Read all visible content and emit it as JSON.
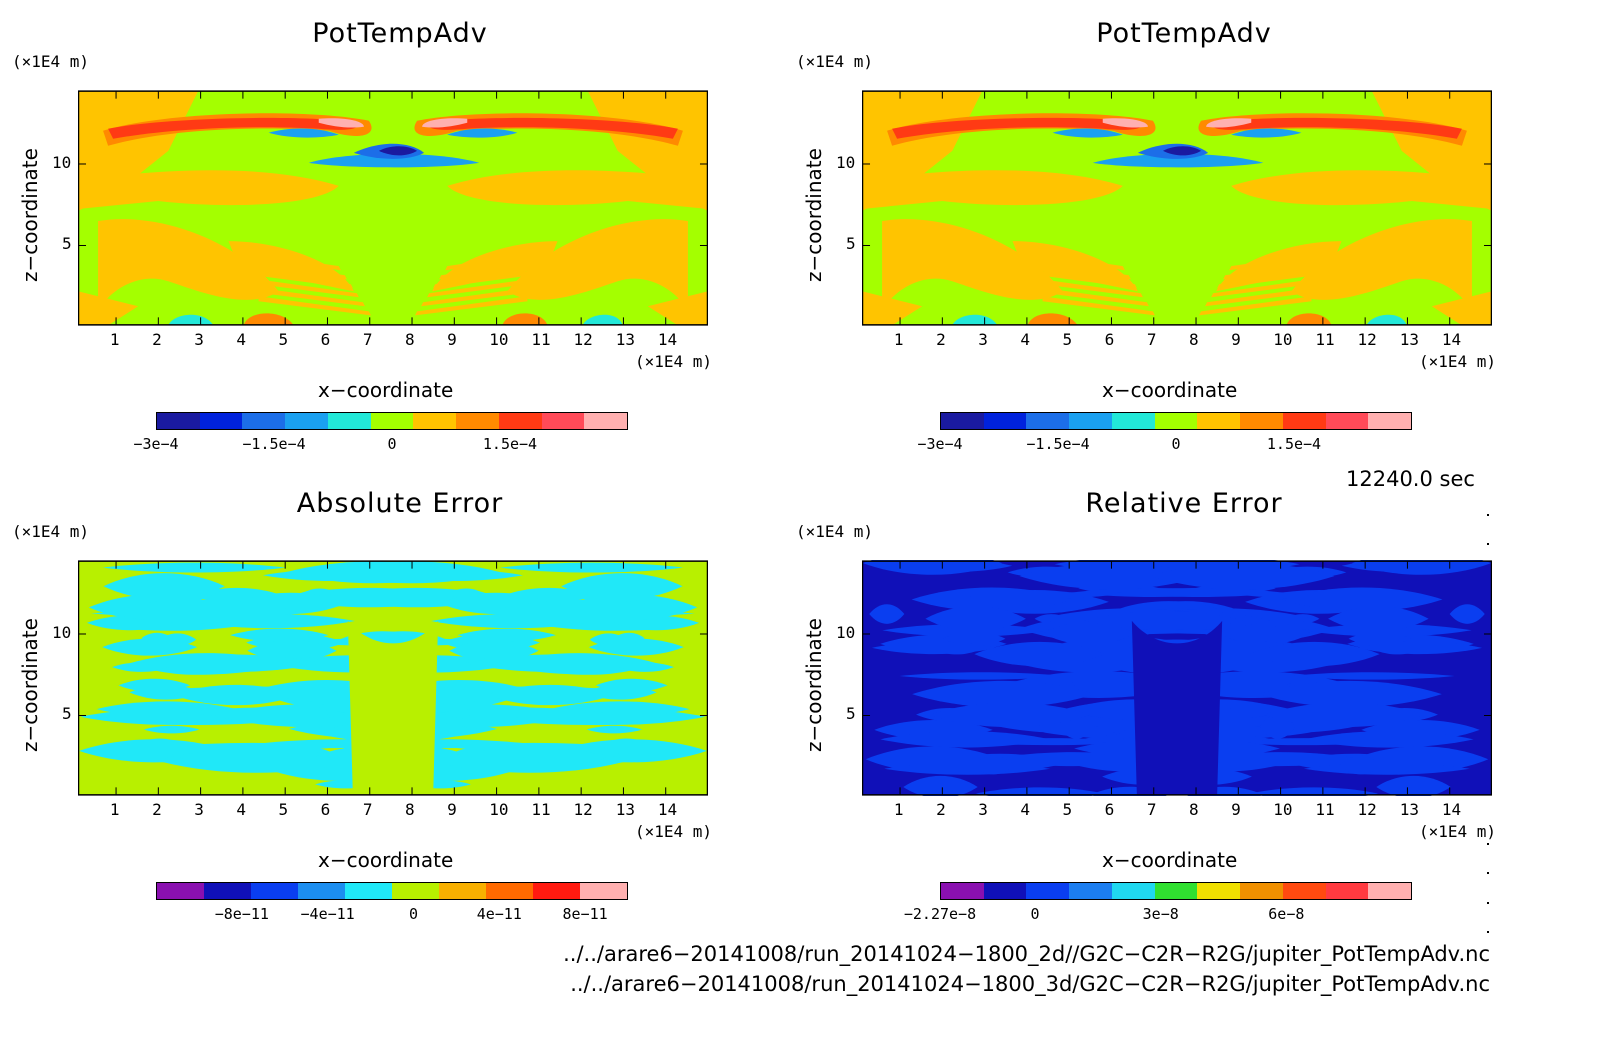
{
  "chart_data": [
    {
      "type": "heatmap",
      "title": "PotTempAdv",
      "xlabel": "x−coordinate",
      "ylabel": "z−coordinate",
      "x_unit": "(×1E4 m)",
      "y_unit": "(×1E4 m)",
      "x_ticks": [
        "1",
        "2",
        "3",
        "4",
        "5",
        "6",
        "7",
        "8",
        "9",
        "10",
        "11",
        "12",
        "13",
        "14"
      ],
      "y_ticks": [
        "5",
        "10"
      ],
      "xlim": [
        0.1,
        15.0
      ],
      "ylim": [
        0.1,
        14.5
      ],
      "colorbar": {
        "colors": [
          "#1a1aa0",
          "#0022dd",
          "#1c6ee8",
          "#1aa0f0",
          "#22e8d8",
          "#a4ff00",
          "#ffc400",
          "#ff8a00",
          "#ff3a14",
          "#ff4a58",
          "#ffb0b0"
        ],
        "tick_labels": [
          "−3e−4",
          "−1.5e−4",
          "0",
          "1.5e−4"
        ],
        "tick_values": [
          -0.0003,
          -0.00015,
          0,
          0.00015
        ],
        "range": [
          -0.0003,
          0.0003
        ]
      },
      "field": "potential temperature advection, 2d run"
    },
    {
      "type": "heatmap",
      "title": "PotTempAdv",
      "xlabel": "x−coordinate",
      "ylabel": "z−coordinate",
      "x_unit": "(×1E4 m)",
      "y_unit": "(×1E4 m)",
      "x_ticks": [
        "1",
        "2",
        "3",
        "4",
        "5",
        "6",
        "7",
        "8",
        "9",
        "10",
        "11",
        "12",
        "13",
        "14"
      ],
      "y_ticks": [
        "5",
        "10"
      ],
      "xlim": [
        0.1,
        15.0
      ],
      "ylim": [
        0.1,
        14.5
      ],
      "colorbar": {
        "colors": [
          "#1a1aa0",
          "#0022dd",
          "#1c6ee8",
          "#1aa0f0",
          "#22e8d8",
          "#a4ff00",
          "#ffc400",
          "#ff8a00",
          "#ff3a14",
          "#ff4a58",
          "#ffb0b0"
        ],
        "tick_labels": [
          "−3e−4",
          "−1.5e−4",
          "0",
          "1.5e−4"
        ],
        "tick_values": [
          -0.0003,
          -0.00015,
          0,
          0.00015
        ],
        "range": [
          -0.0003,
          0.0003
        ]
      },
      "field": "potential temperature advection, 3d run"
    },
    {
      "type": "heatmap",
      "title": "Absolute Error",
      "xlabel": "x−coordinate",
      "ylabel": "z−coordinate",
      "x_unit": "(×1E4 m)",
      "y_unit": "(×1E4 m)",
      "x_ticks": [
        "1",
        "2",
        "3",
        "4",
        "5",
        "6",
        "7",
        "8",
        "9",
        "10",
        "11",
        "12",
        "13",
        "14"
      ],
      "y_ticks": [
        "5",
        "10"
      ],
      "xlim": [
        0.1,
        15.0
      ],
      "ylim": [
        0.1,
        14.5
      ],
      "colorbar": {
        "colors": [
          "#8a10b0",
          "#1010b8",
          "#0a3ef0",
          "#1c8ef0",
          "#20e8f8",
          "#b8f000",
          "#f8b000",
          "#ff6a00",
          "#ff1a10",
          "#ffb0b0"
        ],
        "tick_labels": [
          "−8e−11",
          "−4e−11",
          "0",
          "4e−11",
          "8e−11"
        ],
        "tick_values": [
          -8e-11,
          -4e-11,
          0,
          4e-11,
          8e-11
        ],
        "range": [
          -1.2e-10,
          1e-10
        ]
      },
      "dominant_levels": [
        "−4e−11..0 (cyan)",
        "0..2e−11 (yellow-green)"
      ]
    },
    {
      "type": "heatmap",
      "title": "Relative Error",
      "xlabel": "x−coordinate",
      "ylabel": "z−coordinate",
      "x_unit": "(×1E4 m)",
      "y_unit": "(×1E4 m)",
      "x_ticks": [
        "1",
        "2",
        "3",
        "4",
        "5",
        "6",
        "7",
        "8",
        "9",
        "10",
        "11",
        "12",
        "13",
        "14"
      ],
      "y_ticks": [
        "5",
        "10"
      ],
      "xlim": [
        0.1,
        15.0
      ],
      "ylim": [
        0.1,
        14.5
      ],
      "colorbar": {
        "colors": [
          "#8a10b0",
          "#1010b8",
          "#0a3ef0",
          "#1c7ef0",
          "#20d8f0",
          "#30e030",
          "#f0e000",
          "#f09000",
          "#ff4a10",
          "#ff3a40",
          "#ffb0b0"
        ],
        "tick_labels": [
          "−2.27e−8",
          "0",
          "3e−8",
          "6e−8"
        ],
        "tick_values": [
          -2.27e-08,
          0,
          3e-08,
          6e-08
        ],
        "range": [
          -2.27e-08,
          9e-08
        ]
      },
      "dominant_levels": [
        "−1e−8..0 (blue)",
        "0..1e−8 (light blue)"
      ]
    }
  ],
  "time_label": "12240.0 sec",
  "files": [
    "../../arare6−20141008/run_20141024−1800_2d//G2C−C2R−R2G/jupiter_PotTempAdv.nc",
    "../../arare6−20141008/run_20141024−1800_3d/G2C−C2R−R2G/jupiter_PotTempAdv.nc"
  ]
}
